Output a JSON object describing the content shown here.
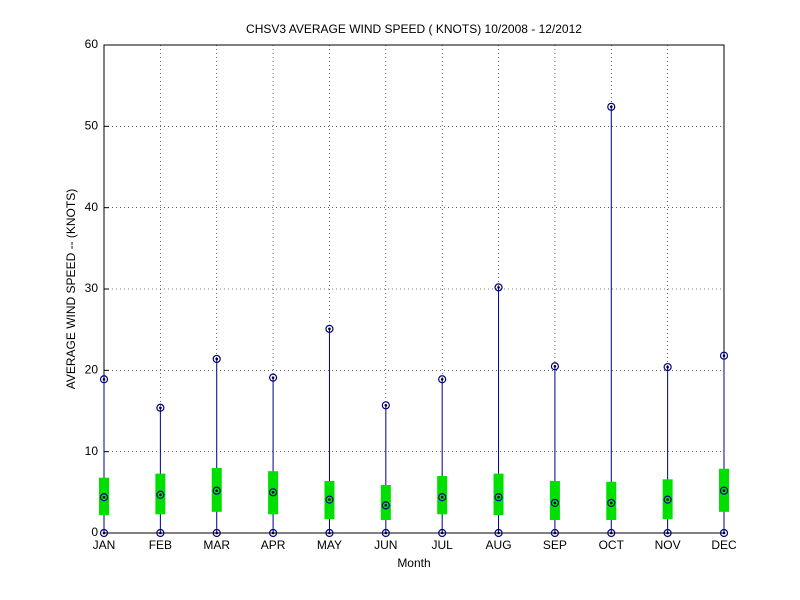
{
  "chart_data": {
    "type": "box",
    "title": "CHSV3  AVERAGE WIND SPEED ( KNOTS) 10/2008 - 12/2012",
    "xlabel": "Month",
    "ylabel": "AVERAGE WIND SPEED -- (KNOTS)",
    "categories": [
      "JAN",
      "FEB",
      "MAR",
      "APR",
      "MAY",
      "JUN",
      "JUL",
      "AUG",
      "SEP",
      "OCT",
      "NOV",
      "DEC"
    ],
    "min": [
      0,
      0,
      0,
      0,
      0,
      0,
      0,
      0,
      0,
      0,
      0,
      0
    ],
    "lower": [
      2.2,
      2.3,
      2.6,
      2.3,
      1.7,
      1.6,
      2.3,
      2.2,
      1.6,
      1.6,
      1.7,
      2.6
    ],
    "mean": [
      4.4,
      4.7,
      5.2,
      5.0,
      4.1,
      3.4,
      4.4,
      4.4,
      3.7,
      3.7,
      4.1,
      5.2
    ],
    "upper": [
      6.8,
      7.3,
      8.0,
      7.6,
      6.4,
      5.9,
      7.0,
      7.3,
      6.4,
      6.3,
      6.6,
      7.9
    ],
    "max": [
      18.9,
      15.4,
      21.4,
      19.1,
      25.1,
      15.7,
      18.9,
      30.2,
      20.5,
      52.4,
      20.4,
      21.8
    ],
    "box_color": "#00e000",
    "whisker_color": "#00008b",
    "ylim": [
      0,
      60
    ],
    "yticks": [
      0,
      10,
      20,
      30,
      40,
      50,
      60
    ],
    "grid": true
  }
}
